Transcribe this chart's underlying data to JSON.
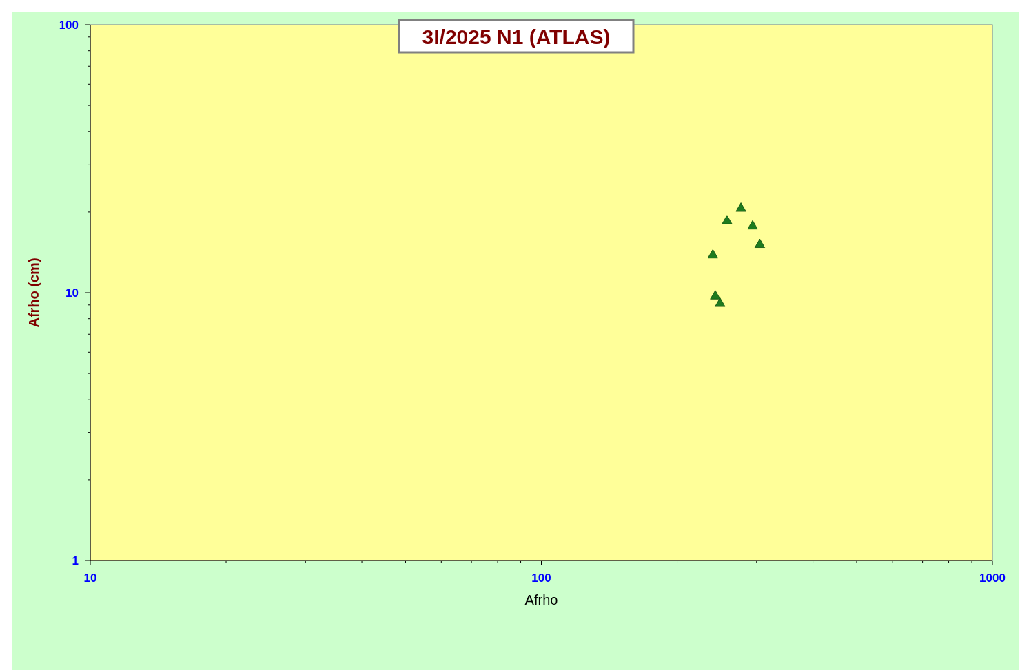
{
  "chart_data": {
    "type": "scatter",
    "title": "3I/2025 N1 (ATLAS)",
    "xlabel": "Afrho",
    "ylabel": "Afrho (cm)",
    "log": "xy",
    "grid": false,
    "marker": "triangle",
    "x": [
      240,
      243,
      249,
      258,
      277,
      294,
      305
    ],
    "series": [
      {
        "color": "#1e7b1e",
        "values": [
          13.8,
          9.7,
          9.1,
          18.5,
          20.6,
          17.7,
          15.1
        ]
      }
    ],
    "xlim": [
      10,
      1000
    ],
    "ylim": [
      1,
      100
    ],
    "xticks": [
      10,
      {
        "value": 20,
        "label": null
      },
      {
        "value": 30,
        "label": null
      },
      {
        "value": 40,
        "label": null
      },
      {
        "value": 50,
        "label": null
      },
      {
        "value": 60,
        "label": null
      },
      {
        "value": 70,
        "label": null
      },
      {
        "value": 80,
        "label": null
      },
      {
        "value": 90,
        "label": null
      },
      100,
      {
        "value": 200,
        "label": null
      },
      {
        "value": 300,
        "label": null
      },
      {
        "value": 400,
        "label": null
      },
      {
        "value": 500,
        "label": null
      },
      {
        "value": 600,
        "label": null
      },
      {
        "value": 700,
        "label": null
      },
      {
        "value": 800,
        "label": null
      },
      {
        "value": 900,
        "label": null
      },
      1000
    ],
    "yticks": [
      1,
      {
        "value": 2,
        "label": null
      },
      {
        "value": 3,
        "label": null
      },
      {
        "value": 4,
        "label": null
      },
      {
        "value": 5,
        "label": null
      },
      {
        "value": 6,
        "label": null
      },
      {
        "value": 7,
        "label": null
      },
      {
        "value": 8,
        "label": null
      },
      {
        "value": 9,
        "label": null
      },
      10,
      {
        "value": 20,
        "label": null
      },
      {
        "value": 30,
        "label": null
      },
      {
        "value": 40,
        "label": null
      },
      {
        "value": 50,
        "label": null
      },
      {
        "value": 60,
        "label": null
      },
      {
        "value": 70,
        "label": null
      },
      {
        "value": 80,
        "label": null
      },
      {
        "value": 90,
        "label": null
      },
      100
    ]
  }
}
